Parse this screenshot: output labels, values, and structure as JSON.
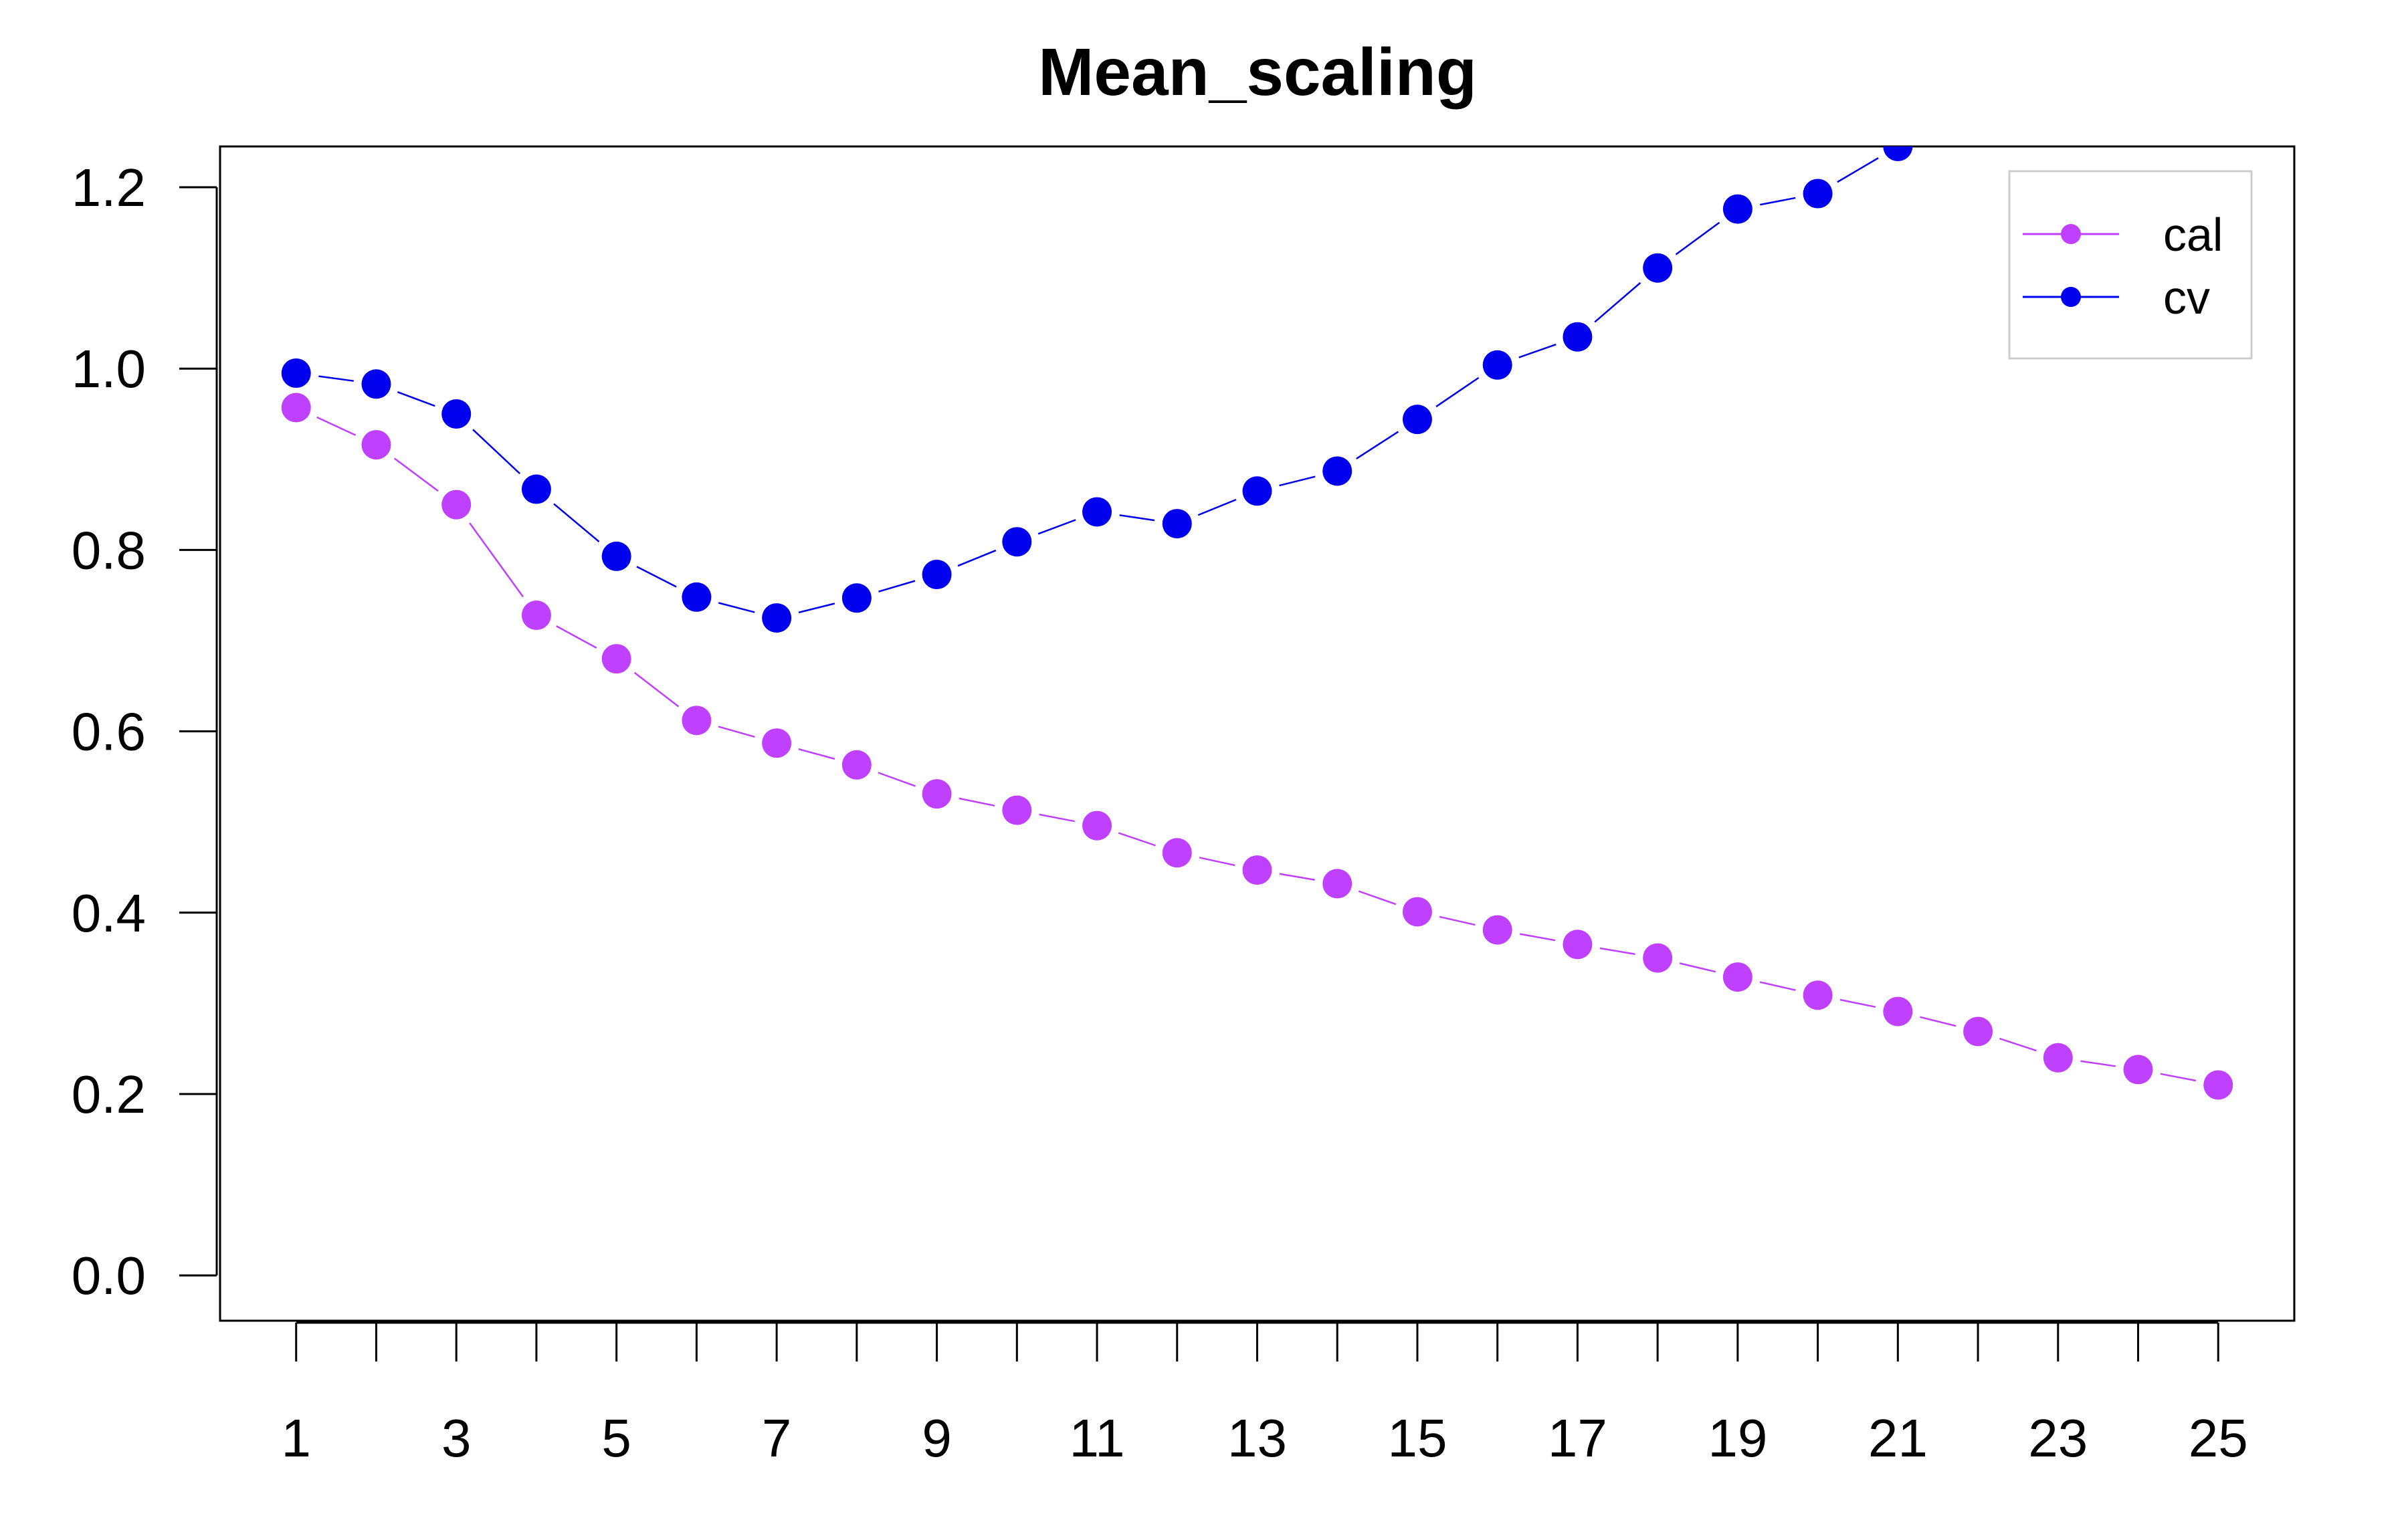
{
  "chart_data": {
    "type": "line",
    "title": "Mean_scaling",
    "xlabel": "",
    "ylabel": "",
    "x": [
      1,
      2,
      3,
      4,
      5,
      6,
      7,
      8,
      9,
      10,
      11,
      12,
      13,
      14,
      15,
      16,
      17,
      18,
      19,
      20,
      21,
      22,
      23,
      24,
      25
    ],
    "x_tick_labels": [
      "1",
      "3",
      "5",
      "7",
      "9",
      "11",
      "13",
      "15",
      "17",
      "19",
      "21",
      "23",
      "25"
    ],
    "y_tick_labels": [
      "0.0",
      "0.2",
      "0.4",
      "0.6",
      "0.8",
      "1.0",
      "1.2"
    ],
    "xlim": [
      0.05,
      25.95
    ],
    "ylim": [
      -0.05,
      1.245
    ],
    "grid": false,
    "legend_position": "top-right",
    "series": [
      {
        "name": "cal",
        "color": "#BF40FF",
        "values": [
          0.957,
          0.916,
          0.85,
          0.728,
          0.68,
          0.612,
          0.587,
          0.563,
          0.531,
          0.513,
          0.496,
          0.466,
          0.447,
          0.432,
          0.401,
          0.381,
          0.365,
          0.35,
          0.329,
          0.309,
          0.291,
          0.269,
          0.24,
          0.227,
          0.21
        ]
      },
      {
        "name": "cv",
        "color": "#0000EE",
        "values": [
          0.995,
          0.983,
          0.95,
          0.867,
          0.793,
          0.748,
          0.725,
          0.747,
          0.773,
          0.809,
          0.842,
          0.829,
          0.865,
          0.887,
          0.944,
          1.004,
          1.035,
          1.111,
          1.176,
          1.193,
          1.245,
          null,
          null,
          null,
          null
        ]
      }
    ]
  }
}
